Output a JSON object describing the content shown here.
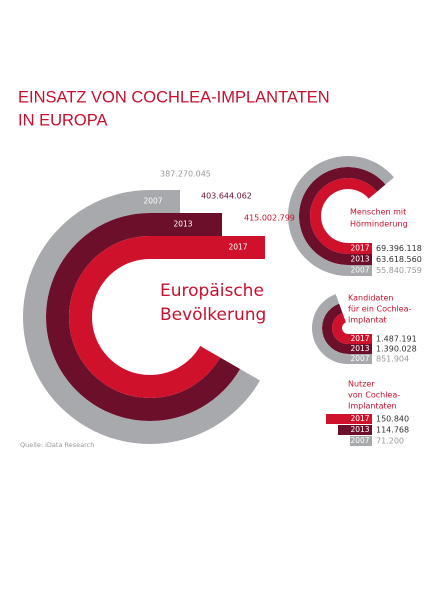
{
  "header": {
    "title_lines": [
      "EINSATZ VON COCHLEA-IMPLANTATEN",
      "IN EUROPA"
    ]
  },
  "population": {
    "label_lines": [
      "Europäische",
      "Bevölkerung"
    ],
    "rows": [
      {
        "year": "2007",
        "value": "387.270.045"
      },
      {
        "year": "2013",
        "value": "403.644.062"
      },
      {
        "year": "2017",
        "value": "415.002.799"
      }
    ]
  },
  "groups": [
    {
      "label_lines": [
        "Menschen mit",
        "Hörminderung"
      ],
      "rows": [
        {
          "year": "2017",
          "value": "69.396.118"
        },
        {
          "year": "2013",
          "value": "63.618.560"
        },
        {
          "year": "2007",
          "value": "55.840.759"
        }
      ]
    },
    {
      "label_lines": [
        "Kandidaten",
        "für ein Cochlea-",
        "Implantat"
      ],
      "rows": [
        {
          "year": "2017",
          "value": "1.487.191"
        },
        {
          "year": "2013",
          "value": "1.390.028"
        },
        {
          "year": "2007",
          "value": "851.904"
        }
      ]
    },
    {
      "label_lines": [
        "Nutzer",
        "von Cochlea-",
        "Implantaten"
      ],
      "rows": [
        {
          "year": "2017",
          "value": "150.840"
        },
        {
          "year": "2013",
          "value": "114.768"
        },
        {
          "year": "2007",
          "value": "71.200"
        }
      ]
    }
  ],
  "source": "Quelle: iData Research"
}
